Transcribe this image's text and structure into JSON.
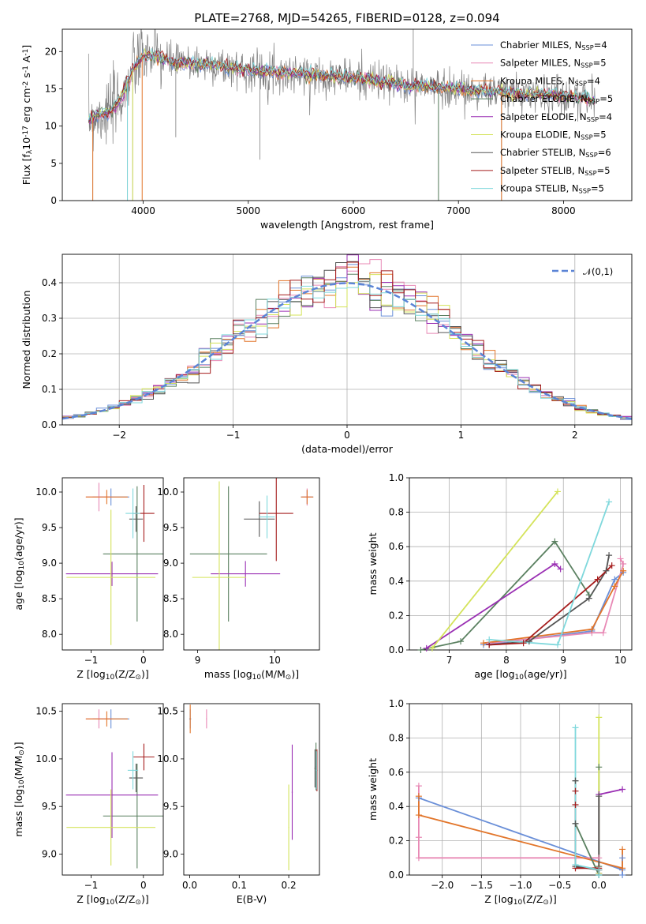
{
  "title": "PLATE=2768, MJD=54265, FIBERID=0128, z=0.094",
  "models": [
    {
      "name": "Chabrier MILES, N$_{SSP}$=4",
      "base": "Chabrier MILES, N",
      "nssp": "4",
      "color": "#6a8fd8"
    },
    {
      "name": "Salpeter MILES, N$_{SSP}$=5",
      "base": "Salpeter MILES, N",
      "nssp": "5",
      "color": "#e889b5"
    },
    {
      "name": "Kroupa MILES, N$_{SSP}$=4",
      "base": "Kroupa MILES, N",
      "nssp": "4",
      "color": "#e2752a"
    },
    {
      "name": "Chabrier ELODIE, N$_{SSP}$=5",
      "base": "Chabrier ELODIE, N",
      "nssp": "5",
      "color": "#5a8060"
    },
    {
      "name": "Salpeter ELODIE, N$_{SSP}$=4",
      "base": "Salpeter ELODIE, N",
      "nssp": "4",
      "color": "#9a2fb3"
    },
    {
      "name": "Kroupa ELODIE, N$_{SSP}$=5",
      "base": "Kroupa ELODIE, N",
      "nssp": "5",
      "color": "#d4e35a"
    },
    {
      "name": "Chabrier STELIB, N$_{SSP}$=6",
      "base": "Chabrier STELIB, N",
      "nssp": "6",
      "color": "#555555"
    },
    {
      "name": "Salpeter STELIB, N$_{SSP}$=5",
      "base": "Salpeter STELIB, N",
      "nssp": "5",
      "color": "#a51c1c"
    },
    {
      "name": "Kroupa STELIB, N$_{SSP}$=5",
      "base": "Kroupa STELIB, N",
      "nssp": "5",
      "color": "#7fd8dc"
    }
  ],
  "chart_data": [
    {
      "id": "spectrum",
      "type": "line",
      "xlabel": "wavelength [Angstrom, rest frame]",
      "ylabel": "Flux [f$_\\lambda$10$^{-17}$ erg cm$^{-2}$ s$^{-1}$ A$^{-1}$]",
      "xlim": [
        3230,
        8650
      ],
      "ylim": [
        0,
        23
      ],
      "xticks": [
        4000,
        5000,
        6000,
        7000,
        8000
      ],
      "yticks": [
        0,
        5,
        10,
        15,
        20
      ],
      "continuum": {
        "x": [
          3480,
          3700,
          3800,
          3900,
          4000,
          4100,
          4300,
          4600,
          5000,
          5500,
          6000,
          6500,
          7000,
          7500,
          8000,
          8300
        ],
        "y": [
          11.0,
          12.0,
          14.0,
          17.5,
          19.5,
          19.5,
          18.5,
          18.3,
          17.5,
          17.0,
          16.5,
          15.5,
          15.0,
          14.5,
          14.0,
          13.5
        ]
      },
      "data_noise_amplitude": 1.6,
      "spikes": [
        {
          "x": 3520,
          "y": 0.0
        },
        {
          "x": 3850,
          "y": 0.0
        },
        {
          "x": 3900,
          "y": 0.0
        },
        {
          "x": 4310,
          "y": 8.5
        },
        {
          "x": 5110,
          "y": 5.5
        },
        {
          "x": 6810,
          "y": 0.0
        },
        {
          "x": 7410,
          "y": 0.0
        },
        {
          "x": 6570,
          "y": 23.0
        }
      ]
    },
    {
      "id": "residuals",
      "type": "area",
      "xlabel": "(data-model)/error",
      "ylabel": "Normed distribution",
      "xlim": [
        -2.5,
        2.5
      ],
      "ylim": [
        0,
        0.48
      ],
      "xticks": [
        -2,
        -1,
        0,
        1,
        2
      ],
      "yticks": [
        0.0,
        0.1,
        0.2,
        0.3,
        0.4
      ],
      "bin_width": 0.1,
      "reference_label": "$\\mathcal{N}(0,1)$",
      "reference_color": "#5b84d6",
      "grid": true,
      "legend": "upper right"
    },
    {
      "id": "age-vs-Z",
      "type": "scatter",
      "xlabel": "Z [log$_{10}$($Z/Z_\\odot$)]",
      "ylabel": "age  [log$_{10}$($age/yr$)]",
      "xlim": [
        -1.55,
        0.38
      ],
      "ylim": [
        7.78,
        10.2
      ],
      "xticks": [
        -1,
        0
      ],
      "yticks": [
        8.0,
        8.5,
        9.0,
        9.5,
        10.0
      ],
      "points": [
        {
          "m": 0,
          "x": -0.62,
          "y": 9.93,
          "xe": 0.35,
          "ye": 0.12
        },
        {
          "m": 1,
          "x": -0.85,
          "y": 9.93,
          "xe": 0.25,
          "ye": 0.2
        },
        {
          "m": 2,
          "x": -0.7,
          "y": 9.93,
          "xe": 0.4,
          "ye": 0.1
        },
        {
          "m": 3,
          "x": -0.12,
          "y": 9.13,
          "xe": 0.65,
          "ye": 0.95
        },
        {
          "m": 4,
          "x": -0.6,
          "y": 8.85,
          "xe": 0.88,
          "ye": 0.17
        },
        {
          "m": 5,
          "x": -0.62,
          "y": 8.8,
          "xe": 0.85,
          "ye": 0.95
        },
        {
          "m": 6,
          "x": -0.14,
          "y": 9.62,
          "xe": 0.13,
          "ye": 0.18
        },
        {
          "m": 7,
          "x": 0.01,
          "y": 9.7,
          "xe": 0.2,
          "ye": 0.4
        },
        {
          "m": 8,
          "x": -0.2,
          "y": 9.7,
          "xe": 0.14,
          "ye": 0.35
        }
      ]
    },
    {
      "id": "age-vs-mass",
      "type": "scatter",
      "xlabel": "mass [log$_{10}$($M/M_\\odot$)]",
      "ylabel": "",
      "xlim": [
        8.82,
        10.58
      ],
      "ylim": [
        7.78,
        10.2
      ],
      "xticks": [
        9,
        10
      ],
      "yticks": [
        8.0,
        8.5,
        9.0,
        9.5,
        10.0
      ],
      "points": [
        {
          "m": 0,
          "x": 10.42,
          "y": 9.93,
          "xe": 0.08,
          "ye": 0.1
        },
        {
          "m": 1,
          "x": 10.42,
          "y": 9.93,
          "xe": 0.06,
          "ye": 0.12
        },
        {
          "m": 2,
          "x": 10.42,
          "y": 9.93,
          "xe": 0.08,
          "ye": 0.1
        },
        {
          "m": 3,
          "x": 9.4,
          "y": 9.13,
          "xe": 0.5,
          "ye": 0.95
        },
        {
          "m": 4,
          "x": 9.62,
          "y": 8.85,
          "xe": 0.45,
          "ye": 0.18
        },
        {
          "m": 5,
          "x": 9.28,
          "y": 8.8,
          "xe": 0.35,
          "ye": 1.35
        },
        {
          "m": 6,
          "x": 9.8,
          "y": 9.62,
          "xe": 0.2,
          "ye": 0.25
        },
        {
          "m": 7,
          "x": 10.02,
          "y": 9.7,
          "xe": 0.22,
          "ye": 0.67
        },
        {
          "m": 8,
          "x": 9.9,
          "y": 9.65,
          "xe": 0.1,
          "ye": 0.3
        }
      ]
    },
    {
      "id": "weight-vs-age",
      "type": "line",
      "xlabel": "age  [log$_{10}$($age/yr$)]",
      "ylabel": "mass weight",
      "xlim": [
        6.3,
        10.2
      ],
      "ylim": [
        0,
        1
      ],
      "xticks": [
        7,
        8,
        9,
        10
      ],
      "yticks": [
        0.0,
        0.2,
        0.4,
        0.6,
        0.8,
        1.0
      ],
      "series": [
        {
          "m": 0,
          "x": [
            7.6,
            9.5,
            9.9,
            10.05
          ],
          "y": [
            0.03,
            0.11,
            0.41,
            0.45
          ]
        },
        {
          "m": 1,
          "x": [
            7.7,
            9.5,
            9.7,
            10.05,
            10.0
          ],
          "y": [
            0.04,
            0.1,
            0.1,
            0.5,
            0.53
          ]
        },
        {
          "m": 2,
          "x": [
            7.6,
            9.5,
            9.9,
            10.05
          ],
          "y": [
            0.04,
            0.12,
            0.37,
            0.46
          ]
        },
        {
          "m": 3,
          "x": [
            6.5,
            7.2,
            8.85,
            9.45
          ],
          "y": [
            0.0,
            0.05,
            0.63,
            0.32
          ]
        },
        {
          "m": 4,
          "x": [
            6.6,
            8.85,
            8.95
          ],
          "y": [
            0.01,
            0.5,
            0.47
          ]
        },
        {
          "m": 5,
          "x": [
            6.7,
            8.9
          ],
          "y": [
            0.01,
            0.92
          ]
        },
        {
          "m": 6,
          "x": [
            7.7,
            8.4,
            9.45,
            9.75,
            9.8
          ],
          "y": [
            0.03,
            0.05,
            0.3,
            0.46,
            0.55
          ]
        },
        {
          "m": 7,
          "x": [
            7.7,
            8.3,
            9.6,
            9.85
          ],
          "y": [
            0.03,
            0.04,
            0.41,
            0.49
          ]
        },
        {
          "m": 8,
          "x": [
            7.7,
            8.9,
            9.8
          ],
          "y": [
            0.06,
            0.03,
            0.86
          ]
        }
      ],
      "grid": true
    },
    {
      "id": "mass-vs-Z",
      "type": "scatter",
      "xlabel": "Z [log$_{10}$($Z/Z_\\odot$)]",
      "ylabel": "mass [log$_{10}$($M/M_\\odot$)]",
      "xlim": [
        -1.55,
        0.38
      ],
      "ylim": [
        8.78,
        10.58
      ],
      "xticks": [
        -1,
        0
      ],
      "yticks": [
        9.0,
        9.5,
        10.0,
        10.5
      ],
      "points": [
        {
          "m": 0,
          "x": -0.62,
          "y": 10.42,
          "xe": 0.35,
          "ye": 0.1
        },
        {
          "m": 1,
          "x": -0.85,
          "y": 10.42,
          "xe": 0.25,
          "ye": 0.1
        },
        {
          "m": 2,
          "x": -0.7,
          "y": 10.42,
          "xe": 0.4,
          "ye": 0.08
        },
        {
          "m": 3,
          "x": -0.12,
          "y": 9.4,
          "xe": 0.65,
          "ye": 0.55
        },
        {
          "m": 4,
          "x": -0.6,
          "y": 9.62,
          "xe": 0.88,
          "ye": 0.45
        },
        {
          "m": 5,
          "x": -0.62,
          "y": 9.28,
          "xe": 0.85,
          "ye": 0.4
        },
        {
          "m": 6,
          "x": -0.14,
          "y": 9.8,
          "xe": 0.13,
          "ye": 0.15
        },
        {
          "m": 7,
          "x": 0.01,
          "y": 10.02,
          "xe": 0.2,
          "ye": 0.14
        },
        {
          "m": 8,
          "x": -0.2,
          "y": 9.88,
          "xe": 0.1,
          "ye": 0.2
        }
      ]
    },
    {
      "id": "mass-vs-ebv",
      "type": "scatter",
      "xlabel": "E(B-V)",
      "ylabel": "",
      "xlim": [
        -0.012,
        0.262
      ],
      "ylim": [
        8.78,
        10.58
      ],
      "xticks": [
        0.0,
        0.1,
        0.2
      ],
      "yticks": [
        9.0,
        9.5,
        10.0,
        10.5
      ],
      "points": [
        {
          "m": 0,
          "x": 0.001,
          "y": 10.42,
          "xe": 0.002,
          "ye": 0.1
        },
        {
          "m": 1,
          "x": 0.034,
          "y": 10.42,
          "xe": 0.001,
          "ye": 0.1
        },
        {
          "m": 2,
          "x": 0.001,
          "y": 10.42,
          "xe": 0.001,
          "ye": 0.15
        },
        {
          "m": 3,
          "x": 0.255,
          "y": 9.92,
          "xe": 0.001,
          "ye": 0.25
        },
        {
          "m": 4,
          "x": 0.207,
          "y": 9.65,
          "xe": 0.001,
          "ye": 0.5
        },
        {
          "m": 5,
          "x": 0.2,
          "y": 9.28,
          "xe": 0.001,
          "ye": 0.45
        },
        {
          "m": 6,
          "x": 0.253,
          "y": 9.9,
          "xe": 0.001,
          "ye": 0.2
        },
        {
          "m": 7,
          "x": 0.257,
          "y": 9.88,
          "xe": 0.001,
          "ye": 0.22
        },
        {
          "m": 8,
          "x": 0.256,
          "y": 9.88,
          "xe": 0.001,
          "ye": 0.2
        }
      ]
    },
    {
      "id": "weight-vs-Z",
      "type": "line",
      "xlabel": "Z [log$_{10}$($Z/Z_\\odot$)]",
      "ylabel": "mass weight",
      "xlim": [
        -2.42,
        0.42
      ],
      "ylim": [
        0,
        1
      ],
      "xticks": [
        -2.0,
        -1.5,
        -1.0,
        -0.5,
        0.0
      ],
      "yticks": [
        0.0,
        0.2,
        0.4,
        0.6,
        0.8,
        1.0
      ],
      "series": [
        {
          "m": 0,
          "x": [
            -2.3,
            0.3,
            0.3,
            0.3
          ],
          "y": [
            0.45,
            0.03,
            0.1,
            0.0
          ]
        },
        {
          "m": 1,
          "x": [
            -2.3,
            -2.3,
            -2.3,
            0.0,
            0.0
          ],
          "y": [
            0.52,
            0.22,
            0.1,
            0.1,
            0.03
          ]
        },
        {
          "m": 2,
          "x": [
            -2.3,
            -2.3,
            0.3,
            0.3
          ],
          "y": [
            0.46,
            0.35,
            0.04,
            0.15
          ]
        },
        {
          "m": 3,
          "x": [
            -0.3,
            -0.3,
            0.0,
            0.0,
            0.0
          ],
          "y": [
            0.55,
            0.3,
            0.0,
            0.05,
            0.63
          ]
        },
        {
          "m": 4,
          "x": [
            0.0,
            0.0,
            0.3
          ],
          "y": [
            0.01,
            0.47,
            0.5
          ]
        },
        {
          "m": 5,
          "x": [
            0.0,
            0.0
          ],
          "y": [
            0.01,
            0.92
          ]
        },
        {
          "m": 6,
          "x": [
            -0.3,
            -0.3,
            -0.3,
            0.0,
            0.0,
            0.0
          ],
          "y": [
            0.55,
            0.3,
            0.05,
            0.03,
            0.0,
            0.46
          ]
        },
        {
          "m": 7,
          "x": [
            -0.3,
            -0.3,
            -0.3,
            0.0,
            0.0
          ],
          "y": [
            0.41,
            0.49,
            0.04,
            0.04,
            0.03
          ]
        },
        {
          "m": 8,
          "x": [
            -0.3,
            -0.3,
            0.0,
            0.0
          ],
          "y": [
            0.86,
            0.06,
            0.03,
            0.0
          ]
        }
      ],
      "grid": true
    }
  ]
}
